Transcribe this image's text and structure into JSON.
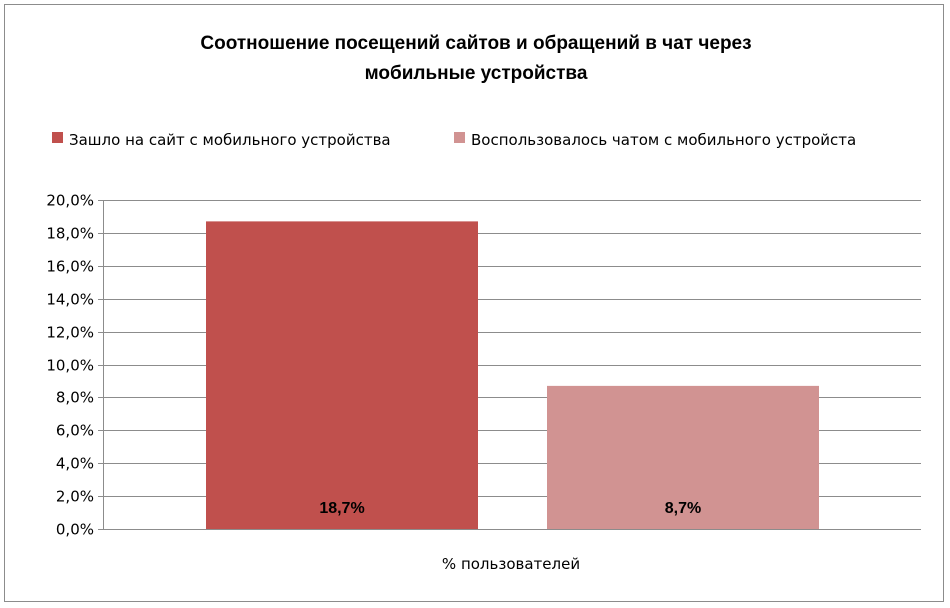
{
  "chart_data": {
    "type": "bar",
    "title_lines": [
      "Соотношение посещений сайтов и обращений в чат через",
      "мобильные устройства"
    ],
    "categories": [
      "% пользователей"
    ],
    "series": [
      {
        "name": "Зашло на сайт с мобильного  устройства",
        "values": [
          18.7
        ],
        "color": "#c0504d",
        "data_label": "18,7%"
      },
      {
        "name": "Воспользовалось чатом с мобильного  устройста",
        "values": [
          8.7
        ],
        "color": "#d19392",
        "data_label": "8,7%"
      }
    ],
    "ylim": [
      0,
      20
    ],
    "y_ticks": [
      "0,0%",
      "2,0%",
      "4,0%",
      "6,0%",
      "8,0%",
      "10,0%",
      "12,0%",
      "14,0%",
      "16,0%",
      "18,0%",
      "20,0%"
    ],
    "grid": true,
    "legend_position": "top"
  }
}
